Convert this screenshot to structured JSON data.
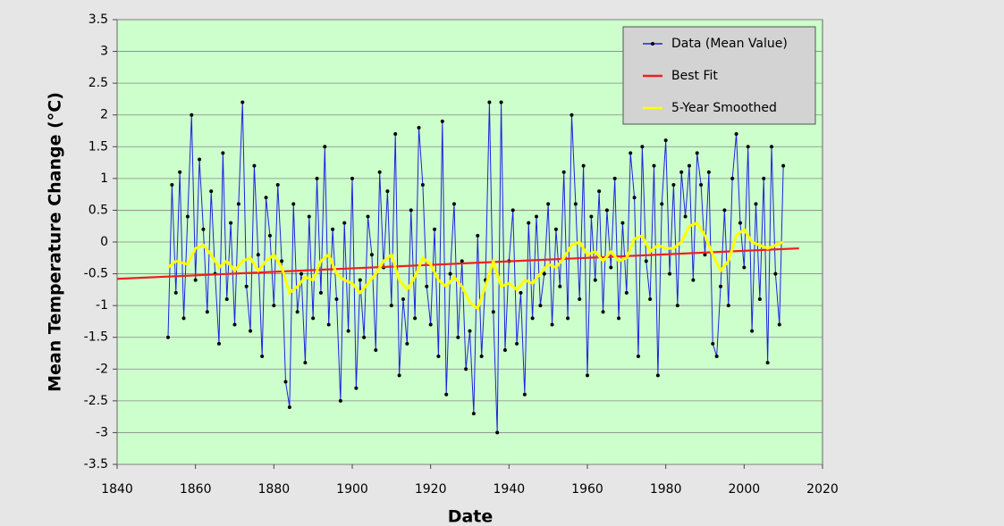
{
  "chart_data": {
    "type": "line",
    "x_label": "Date",
    "y_label": "Mean  Temperature  Change  (°C)",
    "xlim": [
      1840,
      2020
    ],
    "xticks": [
      1840,
      1860,
      1880,
      1900,
      1920,
      1940,
      1960,
      1980,
      2000,
      2020
    ],
    "ylim": [
      -3.5,
      3.5
    ],
    "yticks": [
      -3.5,
      -3,
      -2.5,
      -2,
      -1.5,
      -1,
      -0.5,
      0,
      0.5,
      1,
      1.5,
      2,
      2.5,
      3,
      3.5
    ],
    "grid": true,
    "legend": "upper right",
    "background": "#ccffcc",
    "series": [
      {
        "name": "Data (Mean Value)",
        "color": "#2020e0",
        "markers": true,
        "x": [
          1853,
          1854,
          1855,
          1856,
          1857,
          1858,
          1859,
          1860,
          1861,
          1862,
          1863,
          1864,
          1865,
          1866,
          1867,
          1868,
          1869,
          1870,
          1871,
          1872,
          1873,
          1874,
          1875,
          1876,
          1877,
          1878,
          1879,
          1880,
          1881,
          1882,
          1883,
          1884,
          1885,
          1886,
          1887,
          1888,
          1889,
          1890,
          1891,
          1892,
          1893,
          1894,
          1895,
          1896,
          1897,
          1898,
          1899,
          1900,
          1901,
          1902,
          1903,
          1904,
          1905,
          1906,
          1907,
          1908,
          1909,
          1910,
          1911,
          1912,
          1913,
          1914,
          1915,
          1916,
          1917,
          1918,
          1919,
          1920,
          1921,
          1922,
          1923,
          1924,
          1925,
          1926,
          1927,
          1928,
          1929,
          1930,
          1931,
          1932,
          1933,
          1934,
          1935,
          1936,
          1937,
          1938,
          1939,
          1940,
          1941,
          1942,
          1943,
          1944,
          1945,
          1946,
          1947,
          1948,
          1949,
          1950,
          1951,
          1952,
          1953,
          1954,
          1955,
          1956,
          1957,
          1958,
          1959,
          1960,
          1961,
          1962,
          1963,
          1964,
          1965,
          1966,
          1967,
          1968,
          1969,
          1970,
          1971,
          1972,
          1973,
          1974,
          1975,
          1976,
          1977,
          1978,
          1979,
          1980,
          1981,
          1982,
          1983,
          1984,
          1985,
          1986,
          1987,
          1988,
          1989,
          1990,
          1991,
          1992,
          1993,
          1994,
          1995,
          1996,
          1997,
          1998,
          1999,
          2000,
          2001,
          2002,
          2003,
          2004,
          2005,
          2006,
          2007,
          2008,
          2009,
          2010
        ],
        "values": [
          -1.5,
          0.9,
          -0.8,
          1.1,
          -1.2,
          0.4,
          2.0,
          -0.6,
          1.3,
          0.2,
          -1.1,
          0.8,
          -0.5,
          -1.6,
          1.4,
          -0.9,
          0.3,
          -1.3,
          0.6,
          2.2,
          -0.7,
          -1.4,
          1.2,
          -0.2,
          -1.8,
          0.7,
          0.1,
          -1.0,
          0.9,
          -0.3,
          -2.2,
          -2.6,
          0.6,
          -1.1,
          -0.5,
          -1.9,
          0.4,
          -1.2,
          1.0,
          -0.8,
          1.5,
          -1.3,
          0.2,
          -0.9,
          -2.5,
          0.3,
          -1.4,
          1.0,
          -2.3,
          -0.6,
          -1.5,
          0.4,
          -0.2,
          -1.7,
          1.1,
          -0.4,
          0.8,
          -1.0,
          1.7,
          -2.1,
          -0.9,
          -1.6,
          0.5,
          -1.2,
          1.8,
          0.9,
          -0.7,
          -1.3,
          0.2,
          -1.8,
          1.9,
          -2.4,
          -0.5,
          0.6,
          -1.5,
          -0.3,
          -2.0,
          -1.4,
          -2.7,
          0.1,
          -1.8,
          -0.6,
          2.2,
          -1.1,
          -3.0,
          2.2,
          -1.7,
          -0.3,
          0.5,
          -1.6,
          -0.8,
          -2.4,
          0.3,
          -1.2,
          0.4,
          -1.0,
          -0.5,
          0.6,
          -1.3,
          0.2,
          -0.7,
          1.1,
          -1.2,
          2.0,
          0.6,
          -0.9,
          1.2,
          -2.1,
          0.4,
          -0.6,
          0.8,
          -1.1,
          0.5,
          -0.4,
          1.0,
          -1.2,
          0.3,
          -0.8,
          1.4,
          0.7,
          -1.8,
          1.5,
          -0.3,
          -0.9,
          1.2,
          -2.1,
          0.6,
          1.6,
          -0.5,
          0.9,
          -1.0,
          1.1,
          0.4,
          1.2,
          -0.6,
          1.4,
          0.9,
          -0.2,
          1.1,
          -1.6,
          -1.8,
          -0.7,
          0.5,
          -1.0,
          1.0,
          1.7,
          0.3,
          -0.4,
          1.5,
          -1.4,
          0.6,
          -0.9,
          1.0,
          -1.9,
          1.5,
          -0.5,
          -1.3,
          1.2
        ]
      },
      {
        "name": "Best Fit",
        "color": "#ee2020",
        "x": [
          1840,
          2014
        ],
        "values": [
          -0.58,
          -0.1
        ]
      },
      {
        "name": "5-Year Smoothed",
        "color": "#ffff00",
        "x": [
          1853,
          1855,
          1858,
          1860,
          1862,
          1864,
          1866,
          1868,
          1870,
          1872,
          1874,
          1876,
          1878,
          1880,
          1882,
          1884,
          1886,
          1888,
          1890,
          1892,
          1894,
          1896,
          1898,
          1900,
          1902,
          1904,
          1906,
          1908,
          1910,
          1912,
          1914,
          1916,
          1918,
          1920,
          1922,
          1924,
          1926,
          1928,
          1930,
          1932,
          1934,
          1936,
          1938,
          1940,
          1942,
          1944,
          1946,
          1948,
          1950,
          1952,
          1954,
          1956,
          1958,
          1960,
          1962,
          1964,
          1966,
          1968,
          1970,
          1972,
          1974,
          1976,
          1978,
          1980,
          1982,
          1984,
          1986,
          1988,
          1990,
          1992,
          1994,
          1996,
          1998,
          2000,
          2002,
          2004,
          2006,
          2008,
          2010
        ],
        "values": [
          -0.4,
          -0.3,
          -0.35,
          -0.1,
          -0.05,
          -0.2,
          -0.4,
          -0.3,
          -0.45,
          -0.3,
          -0.25,
          -0.45,
          -0.3,
          -0.2,
          -0.4,
          -0.8,
          -0.7,
          -0.55,
          -0.6,
          -0.3,
          -0.2,
          -0.5,
          -0.6,
          -0.65,
          -0.8,
          -0.65,
          -0.5,
          -0.3,
          -0.2,
          -0.6,
          -0.75,
          -0.55,
          -0.25,
          -0.35,
          -0.6,
          -0.7,
          -0.55,
          -0.7,
          -0.95,
          -1.05,
          -0.7,
          -0.3,
          -0.7,
          -0.65,
          -0.75,
          -0.6,
          -0.65,
          -0.5,
          -0.35,
          -0.4,
          -0.25,
          -0.05,
          0.0,
          -0.2,
          -0.15,
          -0.3,
          -0.15,
          -0.3,
          -0.25,
          0.05,
          0.1,
          -0.15,
          -0.05,
          -0.1,
          -0.1,
          0.0,
          0.25,
          0.3,
          0.1,
          -0.2,
          -0.45,
          -0.3,
          0.1,
          0.2,
          0.0,
          -0.05,
          -0.1,
          -0.05,
          0.0
        ]
      }
    ]
  }
}
